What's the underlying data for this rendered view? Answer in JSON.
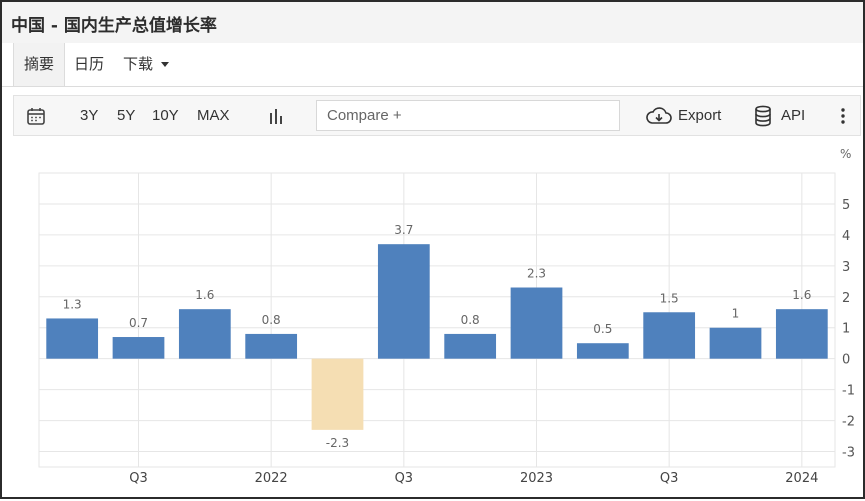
{
  "header": {
    "title": "中国 - 国内生产总值增长率"
  },
  "tabs": [
    {
      "label": "摘要"
    },
    {
      "label": "日历"
    },
    {
      "label": "下载"
    }
  ],
  "toolbar": {
    "ranges": [
      "3Y",
      "5Y",
      "10Y",
      "MAX"
    ],
    "compare_placeholder": "Compare +",
    "export_label": "Export",
    "api_label": "API"
  },
  "colors": {
    "positive": "#4f81bd",
    "negative": "#f5deb3",
    "grid": "#e6e6e6",
    "label": "#666666"
  },
  "chart_data": {
    "type": "bar",
    "unit": "%",
    "values": [
      1.3,
      0.7,
      1.6,
      0.8,
      -2.3,
      3.7,
      0.8,
      2.3,
      0.5,
      1.5,
      1,
      1.6
    ],
    "value_labels": [
      "1.3",
      "0.7",
      "1.6",
      "0.8",
      "-2.3",
      "3.7",
      "0.8",
      "2.3",
      "0.5",
      "1.5",
      "1",
      "1.6"
    ],
    "x_tick_labels": [
      "Q3",
      "2022",
      "Q3",
      "2023",
      "Q3",
      "2024"
    ],
    "x_tick_positions": [
      1.5,
      3.5,
      5.5,
      7.5,
      9.5,
      11.5
    ],
    "ylim": [
      -3.5,
      6
    ],
    "yticks": [
      5,
      4,
      3,
      2,
      1,
      0,
      -1,
      -2,
      -3
    ],
    "grid": true
  }
}
